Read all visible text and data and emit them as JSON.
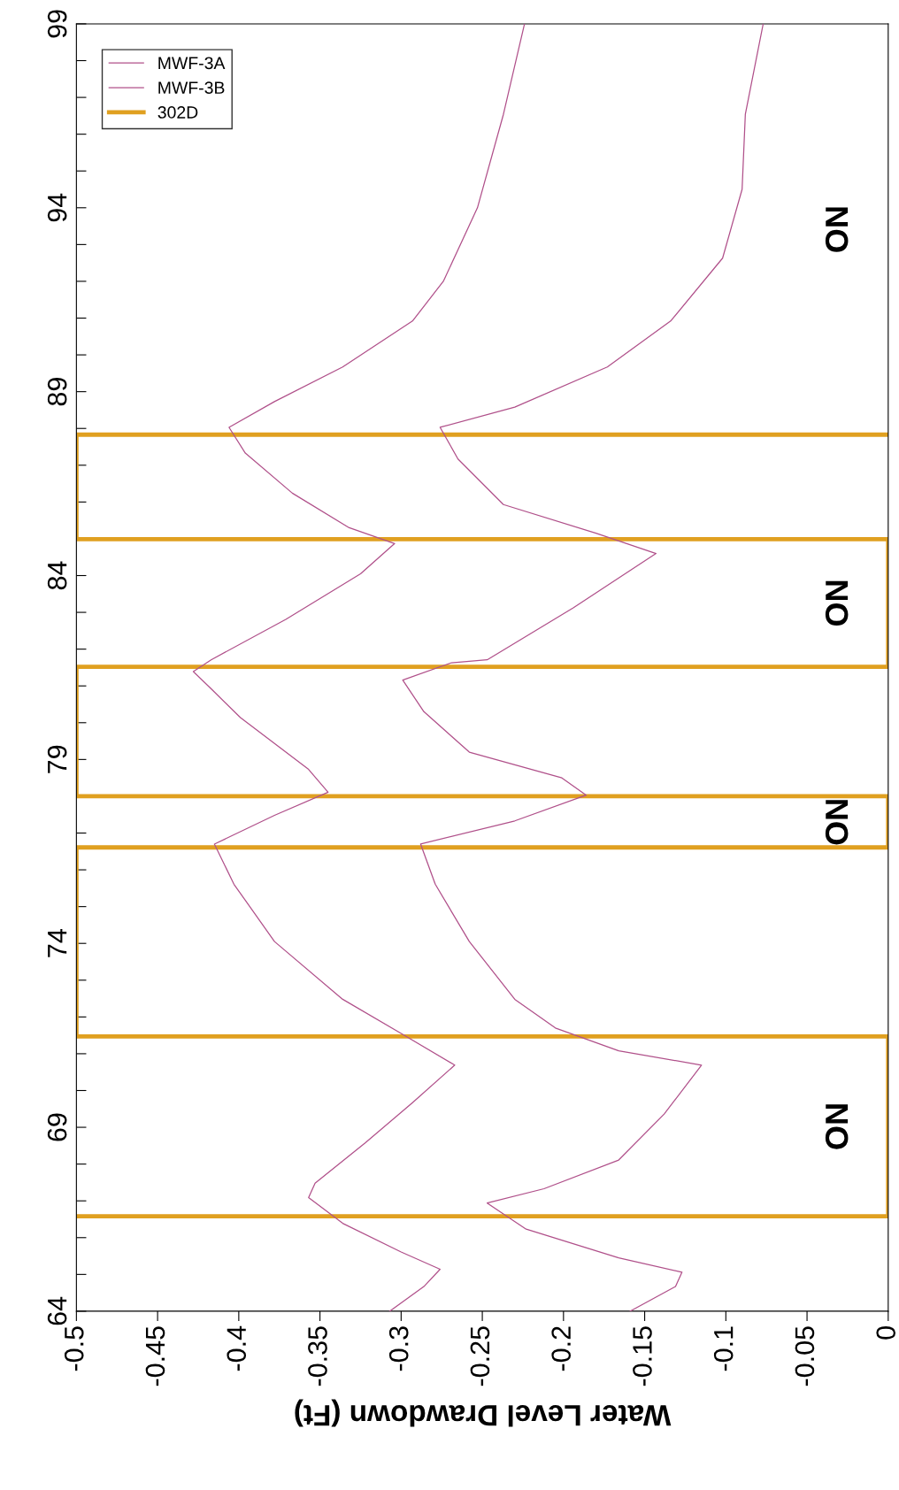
{
  "chart_data": {
    "type": "line",
    "xlabel": "Water Level Drawdown (Ft)",
    "xlim": [
      -0.5,
      0
    ],
    "xticks": [
      -0.5,
      -0.45,
      -0.4,
      -0.35,
      -0.3,
      -0.25,
      -0.2,
      -0.15,
      -0.1,
      -0.05,
      0
    ],
    "ylim": [
      64,
      99
    ],
    "yticks": [
      64,
      {
        "value": 65,
        "label": null
      },
      {
        "value": 66,
        "label": null
      },
      {
        "value": 67,
        "label": null
      },
      {
        "value": 68,
        "label": null
      },
      69,
      {
        "value": 70,
        "label": null
      },
      {
        "value": 71,
        "label": null
      },
      {
        "value": 72,
        "label": null
      },
      {
        "value": 73,
        "label": null
      },
      74,
      {
        "value": 75,
        "label": null
      },
      {
        "value": 76,
        "label": null
      },
      {
        "value": 77,
        "label": null
      },
      {
        "value": 78,
        "label": null
      },
      79,
      {
        "value": 80,
        "label": null
      },
      {
        "value": 81,
        "label": null
      },
      {
        "value": 82,
        "label": null
      },
      {
        "value": 83,
        "label": null
      },
      84,
      {
        "value": 85,
        "label": null
      },
      {
        "value": 86,
        "label": null
      },
      {
        "value": 87,
        "label": null
      },
      {
        "value": 88,
        "label": null
      },
      89,
      {
        "value": 90,
        "label": null
      },
      {
        "value": 91,
        "label": null
      },
      {
        "value": 92,
        "label": null
      },
      {
        "value": 93,
        "label": null
      },
      94,
      {
        "value": 95,
        "label": null
      },
      {
        "value": 96,
        "label": null
      },
      {
        "value": 97,
        "label": null
      },
      {
        "value": 98,
        "label": null
      },
      99
    ],
    "grid": false,
    "legend": "top left",
    "marker": "none",
    "line_style": "solid",
    "series": [
      {
        "name": "MWF-3A",
        "color": "#b0508a",
        "x": [
          -0.224,
          -0.237,
          -0.253,
          -0.274,
          -0.293,
          -0.336,
          -0.378,
          -0.406,
          -0.396,
          -0.367,
          -0.332,
          -0.304,
          -0.325,
          -0.371,
          -0.417,
          -0.428,
          -0.417,
          -0.399,
          -0.357,
          -0.345,
          -0.378,
          -0.415,
          -0.403,
          -0.378,
          -0.336,
          -0.3,
          -0.267,
          -0.293,
          -0.322,
          -0.353,
          -0.357,
          -0.336,
          -0.3,
          -0.276,
          -0.286,
          -0.307
        ],
        "values": [
          99,
          96.54,
          94,
          92.0,
          90.92,
          89.67,
          88.73,
          88.03,
          87.33,
          86.24,
          85.3,
          84.87,
          84.05,
          82.81,
          81.71,
          81.39,
          80.92,
          80.14,
          78.73,
          78.11,
          77.48,
          76.7,
          75.61,
          74.05,
          72.48,
          71.55,
          70.69,
          69.67,
          68.58,
          67.48,
          67.09,
          66.39,
          65.61,
          65.14,
          64.67,
          64
        ]
      },
      {
        "name": "MWF-3B",
        "color": "#b0508a",
        "x": [
          -0.077,
          -0.088,
          -0.09,
          -0.102,
          -0.134,
          -0.173,
          -0.23,
          -0.276,
          -0.265,
          -0.237,
          -0.18,
          -0.143,
          -0.194,
          -0.247,
          -0.269,
          -0.299,
          -0.286,
          -0.258,
          -0.201,
          -0.186,
          -0.23,
          -0.288,
          -0.279,
          -0.258,
          -0.23,
          -0.205,
          -0.166,
          -0.115,
          -0.138,
          -0.166,
          -0.212,
          -0.247,
          -0.223,
          -0.166,
          -0.127,
          -0.131,
          -0.159
        ],
        "values": [
          99,
          96.54,
          94.5,
          92.63,
          90.92,
          89.67,
          88.58,
          88.03,
          87.17,
          85.93,
          85.15,
          84.6,
          83.12,
          81.71,
          81.63,
          81.16,
          80.3,
          79.2,
          78.5,
          78.03,
          77.33,
          76.7,
          75.61,
          74.05,
          72.48,
          71.7,
          71.08,
          70.69,
          69.36,
          68.11,
          67.33,
          66.94,
          66.23,
          65.45,
          65.06,
          64.67,
          64
        ]
      },
      {
        "name": "302D",
        "color": "#e0a020",
        "x": [
          -0.5,
          0,
          0,
          -0.5,
          -0.5,
          0,
          0,
          -0.5,
          -0.5,
          0,
          0,
          -0.5,
          -0.5,
          0
        ],
        "values": [
          66.58,
          66.58,
          71.47,
          71.47,
          76.61,
          76.61,
          78.0,
          78.0,
          81.52,
          81.52,
          84.99,
          84.99,
          87.83,
          87.83
        ]
      }
    ],
    "annotations": [
      "ON",
      "ON",
      "ON",
      "ON"
    ]
  }
}
